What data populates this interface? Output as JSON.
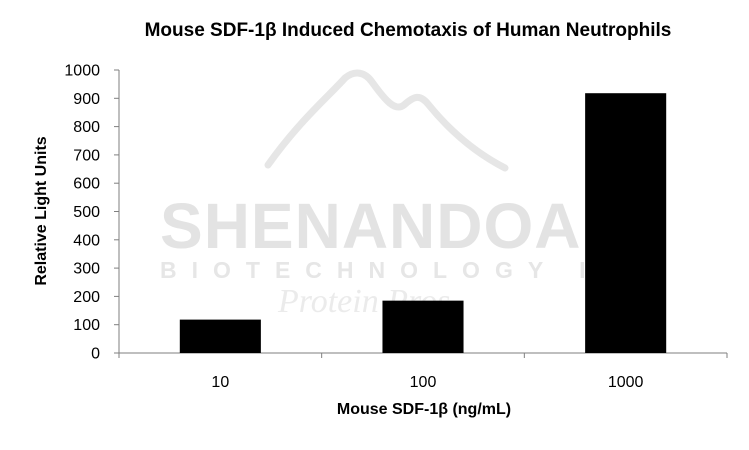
{
  "watermark": {
    "brand": "SHENANDOAH",
    "subline": "BIOTECHNOLOGY INC",
    "tagline": "Protein Pros"
  },
  "chart_data": {
    "type": "bar",
    "title": "Mouse SDF-1β Induced Chemotaxis of Human Neutrophils",
    "xlabel": "Mouse SDF-1β (ng/mL)",
    "ylabel": "Relative Light Units",
    "categories": [
      "10",
      "100",
      "1000"
    ],
    "values": [
      118,
      185,
      918
    ],
    "ylim": [
      0,
      1000
    ],
    "yticks": [
      0,
      100,
      200,
      300,
      400,
      500,
      600,
      700,
      800,
      900,
      1000
    ],
    "bar_color": "#000000",
    "grid": false,
    "legend": "none"
  }
}
